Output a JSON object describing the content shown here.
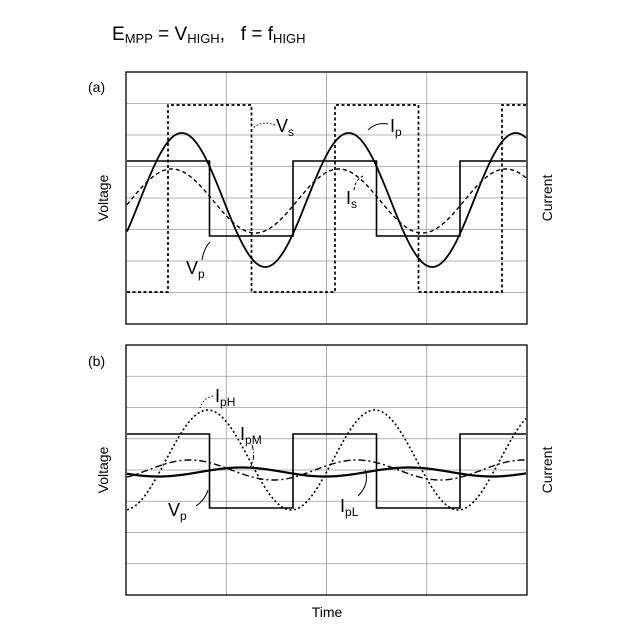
{
  "header": {
    "E": "E",
    "E_sub": "MPP",
    "eq1": " = V",
    "V_sub": "HIGH",
    "sep": ",   f = f",
    "f_sub": "HIGH"
  },
  "axes": {
    "xlabel": "Time",
    "ylabel_left": "Voltage",
    "ylabel_right": "Current"
  },
  "panels": [
    {
      "id": "a",
      "tag": "(a)",
      "series": [
        {
          "key": "Vp",
          "symbol": "V",
          "sub": "p",
          "style": "solid-square"
        },
        {
          "key": "Vs",
          "symbol": "V",
          "sub": "s",
          "style": "dotted-square"
        },
        {
          "key": "Ip",
          "symbol": "I",
          "sub": "p",
          "style": "solid-sine"
        },
        {
          "key": "Is",
          "symbol": "I",
          "sub": "s",
          "style": "dashed-sine"
        }
      ]
    },
    {
      "id": "b",
      "tag": "(b)",
      "series": [
        {
          "key": "Vp",
          "symbol": "V",
          "sub": "p",
          "style": "solid-square"
        },
        {
          "key": "IpH",
          "symbol": "I",
          "sub": "pH",
          "style": "dotted-sine"
        },
        {
          "key": "IpM",
          "symbol": "I",
          "sub": "pM",
          "style": "dashdot-sine"
        },
        {
          "key": "IpL",
          "symbol": "I",
          "sub": "pL",
          "style": "solid-sine"
        }
      ]
    }
  ],
  "colors": {
    "line": "#000000",
    "grid": "#9a9a9a",
    "background": "#ffffff"
  }
}
